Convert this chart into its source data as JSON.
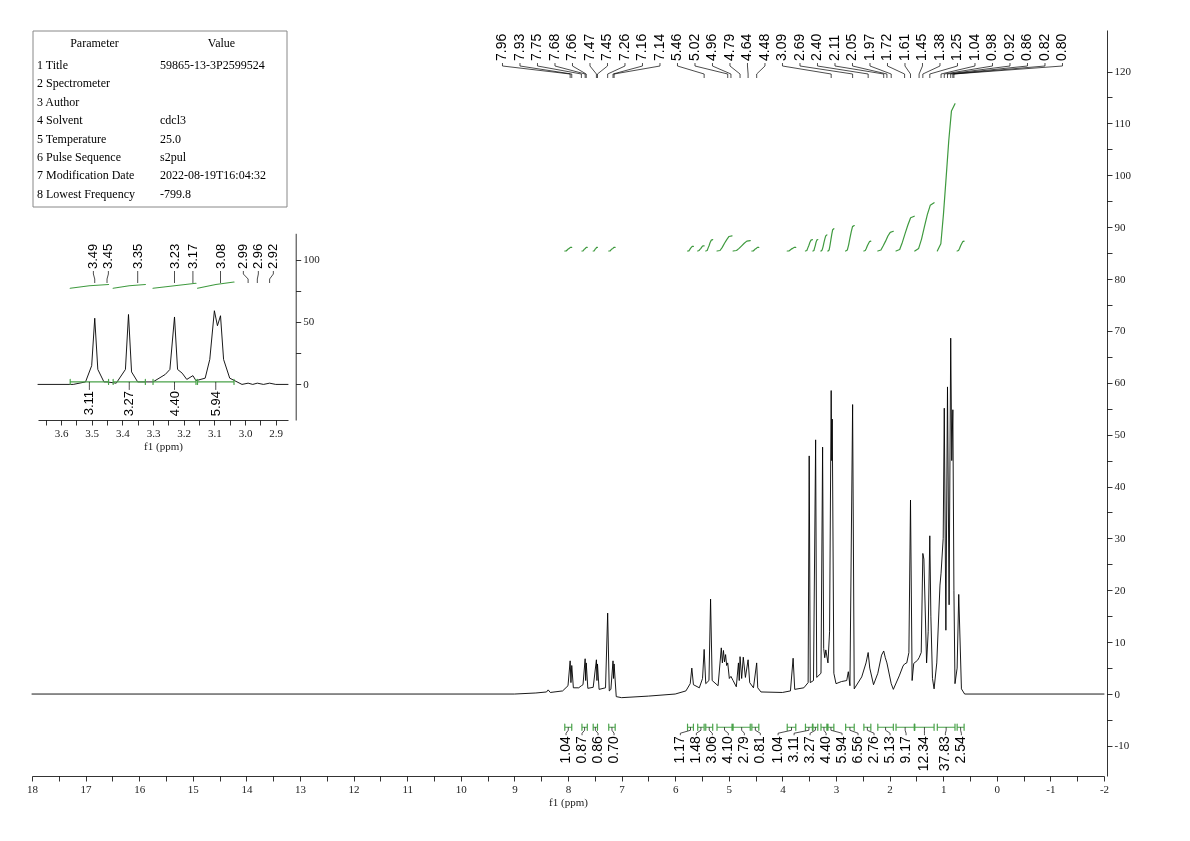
{
  "chart_data": [
    {
      "type": "other",
      "categories": [
        "Parameter",
        "Value"
      ],
      "y_categories": [
        "1 Title",
        "2 Spectrometer",
        "3 Author",
        "4 Solvent",
        "5 Temperature",
        "6 Pulse Sequence",
        "7 Modification Date",
        "8 Lowest Frequency"
      ],
      "cell_labels": [
        [
          "59865-13-3P2599524"
        ],
        [
          null
        ],
        [
          null
        ],
        [
          "cdcl3"
        ],
        [
          "25.0"
        ],
        [
          "s2pul"
        ],
        [
          "2022-08-19T16:04:32"
        ],
        [
          "-799.8"
        ]
      ]
    },
    {
      "type": "line",
      "xlabel": "f1 (ppm)",
      "xlim": [
        3.675,
        2.86
      ],
      "ylim": [
        -28.5,
        121
      ],
      "xticks": [
        {
          "value": 3.65,
          "label": null
        },
        3.6,
        {
          "value": 3.55,
          "label": null
        },
        3.5,
        {
          "value": 3.45,
          "label": null
        },
        3.4,
        {
          "value": 3.35,
          "label": null
        },
        3.3,
        {
          "value": 3.25,
          "label": null
        },
        3.2,
        {
          "value": 3.15,
          "label": null
        },
        3.1,
        {
          "value": 3.05,
          "label": null
        },
        {
          "value": 3.0,
          "label": "3.0"
        },
        {
          "value": 2.95,
          "label": null
        },
        2.9
      ],
      "yticks": [
        0,
        {
          "value": 25,
          "label": null
        },
        50,
        {
          "value": 75,
          "label": null
        },
        100
      ],
      "series": [
        {
          "color": "#000000",
          "x": [
            3.675,
            3.56,
            3.52,
            3.5,
            3.49,
            3.48,
            3.46,
            3.45,
            3.42,
            3.39,
            3.38,
            3.37,
            3.35,
            3.3,
            3.26,
            3.245,
            3.23,
            3.22,
            3.205,
            3.19,
            3.17,
            3.16,
            3.13,
            3.115,
            3.1,
            3.09,
            3.08,
            3.07,
            3.05,
            3.01,
            2.99,
            2.975,
            2.96,
            2.94,
            2.92,
            2.9,
            2.86
          ],
          "values": [
            0,
            0,
            2,
            15,
            53,
            12,
            2,
            2,
            1,
            12,
            56,
            10,
            2,
            2,
            8,
            12,
            54,
            12,
            9,
            4,
            7,
            3,
            5,
            20,
            59,
            47,
            55,
            20,
            5,
            0,
            1,
            0,
            1,
            0,
            1,
            0,
            0
          ]
        },
        {
          "type": "line",
          "color": "#3f9a3f",
          "x": [
            3.57,
            3.5075,
            3.445,
            3.4375,
            3.43,
            3.3775,
            3.325,
            3.3125,
            3.3,
            3.23,
            3.16,
            3.1575,
            3.155,
            3.0955,
            3.036
          ],
          "values": [
            77,
            79,
            80,
            null,
            77,
            79,
            80,
            null,
            77,
            79,
            81,
            null,
            77,
            80,
            82
          ]
        },
        {
          "type": "line",
          "color": "#4aa24a",
          "x": [
            3.57,
            3.57,
            3.57,
            3.5075,
            3.445,
            3.445,
            3.445,
            3.4375,
            3.43,
            3.43,
            3.43,
            3.3775,
            3.325,
            3.325,
            3.325,
            3.3125,
            3.3,
            3.3,
            3.3,
            3.23,
            3.16,
            3.16,
            3.16,
            3.1575,
            3.155,
            3.155,
            3.155,
            3.0955,
            3.036,
            3.036,
            3.036
          ],
          "values": [
            4,
            0,
            2,
            2,
            2,
            4,
            0,
            null,
            4,
            0,
            2,
            2,
            2,
            4,
            0,
            null,
            4,
            0,
            2,
            2,
            2,
            4,
            0,
            null,
            4,
            0,
            2,
            2,
            2,
            4,
            0
          ]
        }
      ],
      "annotations": [
        {
          "text": "3.49",
          "x": 3.49
        },
        {
          "text": "3.45",
          "x": 3.45
        },
        {
          "text": "3.35",
          "x": 3.35
        },
        {
          "text": "3.23",
          "x": 3.23
        },
        {
          "text": "3.17",
          "x": 3.17
        },
        {
          "text": "3.08",
          "x": 3.08
        },
        {
          "text": "2.99",
          "x": 2.99
        },
        {
          "text": "2.96",
          "x": 2.96
        },
        {
          "text": "2.92",
          "x": 2.92
        },
        {
          "text": "3.11",
          "x": 3.5075,
          "y": 2
        },
        {
          "text": "3.27",
          "x": 3.3775,
          "y": 2
        },
        {
          "text": "4.40",
          "x": 3.23,
          "y": 2
        },
        {
          "text": "5.94",
          "x": 3.0955,
          "y": 2
        }
      ]
    },
    {
      "type": "line",
      "xlabel": "f1 (ppm)",
      "xlim": [
        18,
        -2
      ],
      "ylim": [
        -15.8,
        128
      ],
      "xticks": [
        18,
        {
          "value": 17.5,
          "label": null
        },
        17,
        {
          "value": 16.5,
          "label": null
        },
        16,
        {
          "value": 15.5,
          "label": null
        },
        15,
        {
          "value": 14.5,
          "label": null
        },
        14,
        {
          "value": 13.5,
          "label": null
        },
        13,
        {
          "value": 12.5,
          "label": null
        },
        12,
        {
          "value": 11.5,
          "label": null
        },
        11,
        {
          "value": 10.5,
          "label": null
        },
        10,
        {
          "value": 9.5,
          "label": null
        },
        9,
        {
          "value": 8.5,
          "label": null
        },
        8,
        {
          "value": 7.5,
          "label": null
        },
        7,
        {
          "value": 6.5,
          "label": null
        },
        6,
        {
          "value": 5.5,
          "label": null
        },
        5,
        {
          "value": 4.5,
          "label": null
        },
        4,
        {
          "value": 3.5,
          "label": null
        },
        3,
        {
          "value": 2.5,
          "label": null
        },
        2,
        {
          "value": 1.5,
          "label": null
        },
        1,
        {
          "value": 0.5,
          "label": null
        },
        0,
        {
          "value": -0.5,
          "label": null
        },
        -1,
        {
          "value": -1.5,
          "label": null
        },
        -2
      ],
      "yticks": [
        -10,
        {
          "value": -5,
          "label": null
        },
        0,
        {
          "value": 5,
          "label": null
        },
        10,
        {
          "value": 15,
          "label": null
        },
        20,
        {
          "value": 25,
          "label": null
        },
        30,
        {
          "value": 35,
          "label": null
        },
        40,
        {
          "value": 45,
          "label": null
        },
        50,
        {
          "value": 55,
          "label": null
        },
        60,
        {
          "value": 65,
          "label": null
        },
        70,
        {
          "value": 75,
          "label": null
        },
        80,
        {
          "value": 85,
          "label": null
        },
        90,
        {
          "value": 95,
          "label": null
        },
        100,
        {
          "value": 105,
          "label": null
        },
        110,
        {
          "value": 115,
          "label": null
        },
        120
      ],
      "series": [
        {
          "color": "#000000",
          "x": [
            18.0,
            9.0,
            8.6,
            8.4,
            8.37,
            8.33,
            8.1,
            8.0,
            7.96,
            7.945,
            7.93,
            7.9,
            7.8,
            7.75,
            7.72,
            7.68,
            7.67,
            7.66,
            7.63,
            7.53,
            7.47,
            7.46,
            7.45,
            7.42,
            7.3,
            7.26,
            7.23,
            7.2,
            7.16,
            7.15,
            7.14,
            7.1,
            7.0,
            6.5,
            6.0,
            5.8,
            5.72,
            5.69,
            5.66,
            5.55,
            5.49,
            5.46,
            5.43,
            5.37,
            5.34,
            5.31,
            5.2,
            5.14,
            5.12,
            5.1,
            5.08,
            5.06,
            5.04,
            5.02,
            4.99,
            4.96,
            4.92,
            4.86,
            4.82,
            4.805,
            4.79,
            4.76,
            4.73,
            4.69,
            4.64,
            4.61,
            4.54,
            4.48,
            4.46,
            4.4,
            4.0,
            3.85,
            3.8,
            3.77,
            3.6,
            3.52,
            3.5,
            3.48,
            3.42,
            3.38,
            3.36,
            3.28,
            3.25,
            3.23,
            3.21,
            3.19,
            3.15,
            3.12,
            3.09,
            3.08,
            3.07,
            3.04,
            3.0,
            2.9,
            2.8,
            2.77,
            2.74,
            2.69,
            2.66,
            2.52,
            2.44,
            2.4,
            2.37,
            2.3,
            2.22,
            2.15,
            2.11,
            2.08,
            2.05,
            1.97,
            1.93,
            1.82,
            1.75,
            1.72,
            1.68,
            1.64,
            1.61,
            1.58,
            1.55,
            1.48,
            1.45,
            1.41,
            1.38,
            1.36,
            1.31,
            1.28,
            1.25,
            1.23,
            1.2,
            1.17,
            1.12,
            1.06,
            1.04,
            1.0,
            0.98,
            0.95,
            0.92,
            0.89,
            0.86,
            0.84,
            0.82,
            0.8,
            0.78,
            0.74,
            0.71,
            0.66,
            0.6,
            -2.0
          ],
          "values": [
            0,
            0,
            0.2,
            0.4,
            0.8,
            0.3,
            0.6,
            1.6,
            6.4,
            2.2,
            5.5,
            1.2,
            1.2,
            1.6,
            1.8,
            6.8,
            2.6,
            6.0,
            1.1,
            1.3,
            6.6,
            2.6,
            5.8,
            0.9,
            1.2,
            15.6,
            0.6,
            0.9,
            6.4,
            3.0,
            5.8,
            -0.5,
            -0.7,
            -0.4,
            0,
            0.6,
            2.0,
            5.0,
            1.8,
            1.2,
            3.0,
            8.6,
            2.0,
            2.6,
            18.3,
            2.6,
            1.6,
            8.9,
            6.0,
            8.4,
            6.2,
            7.6,
            5.5,
            6.0,
            3.0,
            3.4,
            2.6,
            1.4,
            6.0,
            2.6,
            7.2,
            3.0,
            7.1,
            3.2,
            6.6,
            2.2,
            1.2,
            6.0,
            1.2,
            0.4,
            0.3,
            0.6,
            6.9,
            0.9,
            1.2,
            2.2,
            45.9,
            2.2,
            2.6,
            49.0,
            3.2,
            4.0,
            47.6,
            8.8,
            7.0,
            8.5,
            6.0,
            12.0,
            58.5,
            45.0,
            53.0,
            4.0,
            2.0,
            2.4,
            2.6,
            4.3,
            1.6,
            55.8,
            1.0,
            3.3,
            6.0,
            8.0,
            5.0,
            1.8,
            4.0,
            7.5,
            8.3,
            7.0,
            6.0,
            2.0,
            0.9,
            3.5,
            5.4,
            5.8,
            6.0,
            8.0,
            37.4,
            2.6,
            5.9,
            6.5,
            7.0,
            8.0,
            27.1,
            26.0,
            6.0,
            12.0,
            30.5,
            15.0,
            3.0,
            1.0,
            6.0,
            21.0,
            23.3,
            30.0,
            55.1,
            12.3,
            59.2,
            17.2,
            68.6,
            45.0,
            54.8,
            20.0,
            2.0,
            5.0,
            19.2,
            1.0,
            0,
            0
          ]
        },
        {
          "type": "line",
          "color": "#3f9a3f",
          "x": [
            8.06,
            8.034,
            8.015,
            7.995,
            7.976,
            7.956,
            7.93,
            7.835,
            7.74,
            7.72,
            7.705,
            7.69,
            7.675,
            7.66,
            7.64,
            7.585,
            7.53,
            7.514,
            7.502,
            7.49,
            7.478,
            7.466,
            7.45,
            7.345,
            7.24,
            7.216,
            7.198,
            7.18,
            7.162,
            7.144,
            7.12,
            6.445,
            5.77,
            5.748,
            5.732,
            5.715,
            5.699,
            5.682,
            5.66,
            5.62,
            5.58,
            5.556,
            5.538,
            5.52,
            5.502,
            5.484,
            5.46,
            5.445,
            5.43,
            5.404,
            5.385,
            5.365,
            5.346,
            5.326,
            5.3,
            5.26,
            5.22,
            5.164,
            5.122,
            5.08,
            5.038,
            4.996,
            4.94,
            4.93,
            4.92,
            4.856,
            4.808,
            4.76,
            4.712,
            4.664,
            4.6,
            4.585,
            4.57,
            4.544,
            4.525,
            4.505,
            4.486,
            4.466,
            4.44,
            4.175,
            3.91,
            3.878,
            3.854,
            3.83,
            3.806,
            3.782,
            3.75,
            3.66,
            3.57,
            3.544,
            3.525,
            3.505,
            3.486,
            3.466,
            3.44,
            3.435,
            3.43,
            3.412,
            3.399,
            3.385,
            3.372,
            3.358,
            3.34,
            3.31,
            3.28,
            3.258,
            3.242,
            3.225,
            3.209,
            3.192,
            3.17,
            3.16,
            3.15,
            3.128,
            3.112,
            3.095,
            3.079,
            3.062,
            3.04,
            2.93,
            2.82,
            2.788,
            2.764,
            2.74,
            2.716,
            2.692,
            2.66,
            2.57,
            2.48,
            2.454,
            2.435,
            2.415,
            2.396,
            2.376,
            2.35,
            2.285,
            2.22,
            2.162,
            2.119,
            2.075,
            2.032,
            1.988,
            1.93,
            1.905,
            1.88,
            1.812,
            1.761,
            1.71,
            1.659,
            1.608,
            1.54,
            1.535,
            1.53,
            1.458,
            1.404,
            1.35,
            1.296,
            1.242,
            1.17,
            1.14,
            1.11,
            1.044,
            0.995,
            0.945,
            0.896,
            0.846,
            0.78,
            0.76,
            0.74,
            0.714,
            0.695,
            0.675,
            0.656,
            0.636,
            0.61
          ],
          "values": [
            85.4,
            85.4,
            85.6,
            85.8,
            85.9,
            86.1,
            86.1,
            null,
            85.4,
            85.4,
            85.6,
            85.8,
            85.9,
            86.1,
            86.1,
            null,
            85.4,
            85.4,
            85.6,
            85.8,
            85.9,
            86.1,
            86.1,
            null,
            85.4,
            85.4,
            85.6,
            85.8,
            85.9,
            86.1,
            86.1,
            null,
            85.4,
            85.4,
            85.6,
            85.9,
            86.1,
            86.3,
            86.3,
            null,
            85.4,
            85.5,
            85.7,
            85.9,
            86.2,
            86.4,
            86.4,
            null,
            85.4,
            85.5,
            86.0,
            86.5,
            87.1,
            87.5,
            87.6,
            null,
            85.4,
            85.5,
            86.1,
            86.9,
            87.6,
            88.2,
            88.3,
            null,
            85.4,
            85.5,
            85.9,
            86.4,
            86.9,
            87.3,
            87.4,
            null,
            85.4,
            85.4,
            85.6,
            85.8,
            85.9,
            86.1,
            86.1,
            null,
            85.4,
            85.4,
            85.6,
            85.8,
            85.9,
            86.1,
            86.1,
            null,
            85.4,
            85.5,
            86.0,
            86.5,
            87.1,
            87.5,
            87.6,
            null,
            85.4,
            85.5,
            86.0,
            86.5,
            87.1,
            87.5,
            87.6,
            null,
            85.4,
            85.6,
            86.2,
            87.0,
            87.7,
            88.3,
            88.5,
            null,
            85.4,
            85.6,
            86.5,
            87.6,
            88.6,
            89.5,
            89.7,
            null,
            85.4,
            85.6,
            86.6,
            87.9,
            89.1,
            90.1,
            90.3,
            null,
            85.4,
            85.5,
            85.9,
            86.4,
            86.8,
            87.2,
            87.3,
            null,
            85.4,
            85.6,
            86.4,
            87.3,
            88.3,
            89.0,
            89.2,
            null,
            85.4,
            85.7,
            87.1,
            88.8,
            90.4,
            91.8,
            92.1,
            null,
            85.4,
            85.9,
            87.7,
            90.1,
            92.4,
            94.2,
            94.7,
            null,
            85.4,
            86.8,
            92.5,
            99.6,
            106.7,
            112.4,
            113.8,
            null,
            85.4,
            85.5,
            85.9,
            86.4,
            86.8,
            87.2,
            87.3
          ]
        },
        {
          "type": "line",
          "color": "#4aa24a",
          "x": [
            8.06,
            8.06,
            8.06,
            7.995,
            7.93,
            7.93,
            7.93,
            7.835,
            7.74,
            7.74,
            7.74,
            7.69,
            7.64,
            7.64,
            7.64,
            7.585,
            7.53,
            7.53,
            7.53,
            7.49,
            7.45,
            7.45,
            7.45,
            7.345,
            7.24,
            7.24,
            7.24,
            7.18,
            7.12,
            7.12,
            7.12,
            6.445,
            5.77,
            5.77,
            5.77,
            5.715,
            5.66,
            5.66,
            5.66,
            5.62,
            5.58,
            5.58,
            5.58,
            5.52,
            5.46,
            5.46,
            5.46,
            5.445,
            5.43,
            5.43,
            5.43,
            5.365,
            5.3,
            5.3,
            5.3,
            5.26,
            5.22,
            5.22,
            5.22,
            5.08,
            4.94,
            4.94,
            4.94,
            4.93,
            4.92,
            4.92,
            4.92,
            4.76,
            4.6,
            4.6,
            4.6,
            4.585,
            4.57,
            4.57,
            4.57,
            4.505,
            4.44,
            4.44,
            4.44,
            4.175,
            3.91,
            3.91,
            3.91,
            3.83,
            3.75,
            3.75,
            3.75,
            3.66,
            3.57,
            3.57,
            3.57,
            3.505,
            3.44,
            3.44,
            3.44,
            3.435,
            3.43,
            3.43,
            3.43,
            3.385,
            3.34,
            3.34,
            3.34,
            3.31,
            3.28,
            3.28,
            3.28,
            3.225,
            3.17,
            3.17,
            3.17,
            3.16,
            3.15,
            3.15,
            3.15,
            3.095,
            3.04,
            3.04,
            3.04,
            2.93,
            2.82,
            2.82,
            2.82,
            2.74,
            2.66,
            2.66,
            2.66,
            2.57,
            2.48,
            2.48,
            2.48,
            2.415,
            2.35,
            2.35,
            2.35,
            2.285,
            2.22,
            2.22,
            2.22,
            2.075,
            1.93,
            1.93,
            1.93,
            1.905,
            1.88,
            1.88,
            1.88,
            1.71,
            1.54,
            1.54,
            1.54,
            1.535,
            1.53,
            1.53,
            1.53,
            1.35,
            1.17,
            1.17,
            1.17,
            1.14,
            1.11,
            1.11,
            1.11,
            0.945,
            0.78,
            0.78,
            0.78,
            0.76,
            0.74,
            0.74,
            0.74,
            0.675,
            0.61,
            0.61,
            0.61
          ],
          "values": [
            -5.8,
            -7.0,
            -6.4,
            -6.4,
            -6.4,
            -5.8,
            -7.0,
            null,
            -5.8,
            -7.0,
            -6.4,
            -6.4,
            -6.4,
            -5.8,
            -7.0,
            null,
            -5.8,
            -7.0,
            -6.4,
            -6.4,
            -6.4,
            -5.8,
            -7.0,
            null,
            -5.8,
            -7.0,
            -6.4,
            -6.4,
            -6.4,
            -5.8,
            -7.0,
            null,
            -5.8,
            -7.0,
            -6.4,
            -6.4,
            -6.4,
            -5.8,
            -7.0,
            null,
            -5.8,
            -7.0,
            -6.4,
            -6.4,
            -6.4,
            -5.8,
            -7.0,
            null,
            -5.8,
            -7.0,
            -6.4,
            -6.4,
            -6.4,
            -5.8,
            -7.0,
            null,
            -5.8,
            -7.0,
            -6.4,
            -6.4,
            -6.4,
            -5.8,
            -7.0,
            null,
            -5.8,
            -7.0,
            -6.4,
            -6.4,
            -6.4,
            -5.8,
            -7.0,
            null,
            -5.8,
            -7.0,
            -6.4,
            -6.4,
            -6.4,
            -5.8,
            -7.0,
            null,
            -5.8,
            -7.0,
            -6.4,
            -6.4,
            -6.4,
            -5.8,
            -7.0,
            null,
            -5.8,
            -7.0,
            -6.4,
            -6.4,
            -6.4,
            -5.8,
            -7.0,
            null,
            -5.8,
            -7.0,
            -6.4,
            -6.4,
            -6.4,
            -5.8,
            -7.0,
            null,
            -5.8,
            -7.0,
            -6.4,
            -6.4,
            -6.4,
            -5.8,
            -7.0,
            null,
            -5.8,
            -7.0,
            -6.4,
            -6.4,
            -6.4,
            -5.8,
            -7.0,
            null,
            -5.8,
            -7.0,
            -6.4,
            -6.4,
            -6.4,
            -5.8,
            -7.0,
            null,
            -5.8,
            -7.0,
            -6.4,
            -6.4,
            -6.4,
            -5.8,
            -7.0,
            null,
            -5.8,
            -7.0,
            -6.4,
            -6.4,
            -6.4,
            -5.8,
            -7.0,
            null,
            -5.8,
            -7.0,
            -6.4,
            -6.4,
            -6.4,
            -5.8,
            -7.0,
            null,
            -5.8,
            -7.0,
            -6.4,
            -6.4,
            -6.4,
            -5.8,
            -7.0,
            null,
            -5.8,
            -7.0,
            -6.4,
            -6.4,
            -6.4,
            -5.8,
            -7.0,
            null,
            -5.8,
            -7.0,
            -6.4,
            -6.4,
            -6.4,
            -5.8,
            -7.0
          ]
        }
      ],
      "annotations": [
        {
          "text": "7.96",
          "x": 7.96
        },
        {
          "text": "7.93",
          "x": 7.93
        },
        {
          "text": "7.75",
          "x": 7.75
        },
        {
          "text": "7.68",
          "x": 7.68
        },
        {
          "text": "7.66",
          "x": 7.66
        },
        {
          "text": "7.47",
          "x": 7.47
        },
        {
          "text": "7.45",
          "x": 7.45
        },
        {
          "text": "7.26",
          "x": 7.26
        },
        {
          "text": "7.16",
          "x": 7.16
        },
        {
          "text": "7.14",
          "x": 7.14
        },
        {
          "text": "5.46",
          "x": 5.46
        },
        {
          "text": "5.02",
          "x": 5.02
        },
        {
          "text": "4.96",
          "x": 4.96
        },
        {
          "text": "4.79",
          "x": 4.79
        },
        {
          "text": "4.64",
          "x": 4.64
        },
        {
          "text": "4.48",
          "x": 4.48
        },
        {
          "text": "3.09",
          "x": 3.09
        },
        {
          "text": "2.69",
          "x": 2.69
        },
        {
          "text": "2.40",
          "x": 2.4
        },
        {
          "text": "2.11",
          "x": 2.11
        },
        {
          "text": "2.05",
          "x": 2.05
        },
        {
          "text": "1.97",
          "x": 1.97
        },
        {
          "text": "1.72",
          "x": 1.72
        },
        {
          "text": "1.61",
          "x": 1.61
        },
        {
          "text": "1.45",
          "x": 1.45
        },
        {
          "text": "1.38",
          "x": 1.38
        },
        {
          "text": "1.25",
          "x": 1.25
        },
        {
          "text": "1.04",
          "x": 1.04
        },
        {
          "text": "0.98",
          "x": 0.98
        },
        {
          "text": "0.92",
          "x": 0.92
        },
        {
          "text": "0.86",
          "x": 0.86
        },
        {
          "text": "0.82",
          "x": 0.82
        },
        {
          "text": "0.80",
          "x": 0.8
        },
        {
          "text": "1.04",
          "x": 7.995,
          "y": -6.4
        },
        {
          "text": "0.87",
          "x": 7.69,
          "y": -6.4
        },
        {
          "text": "0.86",
          "x": 7.49,
          "y": -6.4
        },
        {
          "text": "0.70",
          "x": 7.18,
          "y": -6.4
        },
        {
          "text": "1.17",
          "x": 5.715,
          "y": -6.4
        },
        {
          "text": "1.48",
          "x": 5.52,
          "y": -6.4
        },
        {
          "text": "3.06",
          "x": 5.365,
          "y": -6.4
        },
        {
          "text": "4.10",
          "x": 5.08,
          "y": -6.4
        },
        {
          "text": "2.79",
          "x": 4.76,
          "y": -6.4
        },
        {
          "text": "0.81",
          "x": 4.505,
          "y": -6.4
        },
        {
          "text": "1.04",
          "x": 3.83,
          "y": -6.4
        },
        {
          "text": "3.11",
          "x": 3.505,
          "y": -6.4
        },
        {
          "text": "3.27",
          "x": 3.385,
          "y": -6.4
        },
        {
          "text": "4.40",
          "x": 3.225,
          "y": -6.4
        },
        {
          "text": "5.94",
          "x": 3.095,
          "y": -6.4
        },
        {
          "text": "6.56",
          "x": 2.74,
          "y": -6.4
        },
        {
          "text": "2.76",
          "x": 2.415,
          "y": -6.4
        },
        {
          "text": "5.13",
          "x": 2.075,
          "y": -6.4
        },
        {
          "text": "9.17",
          "x": 1.71,
          "y": -6.4
        },
        {
          "text": "12.34",
          "x": 1.35,
          "y": -6.4
        },
        {
          "text": "37.83",
          "x": 0.945,
          "y": -6.4
        },
        {
          "text": "2.54",
          "x": 0.675,
          "y": -6.4
        }
      ]
    }
  ]
}
